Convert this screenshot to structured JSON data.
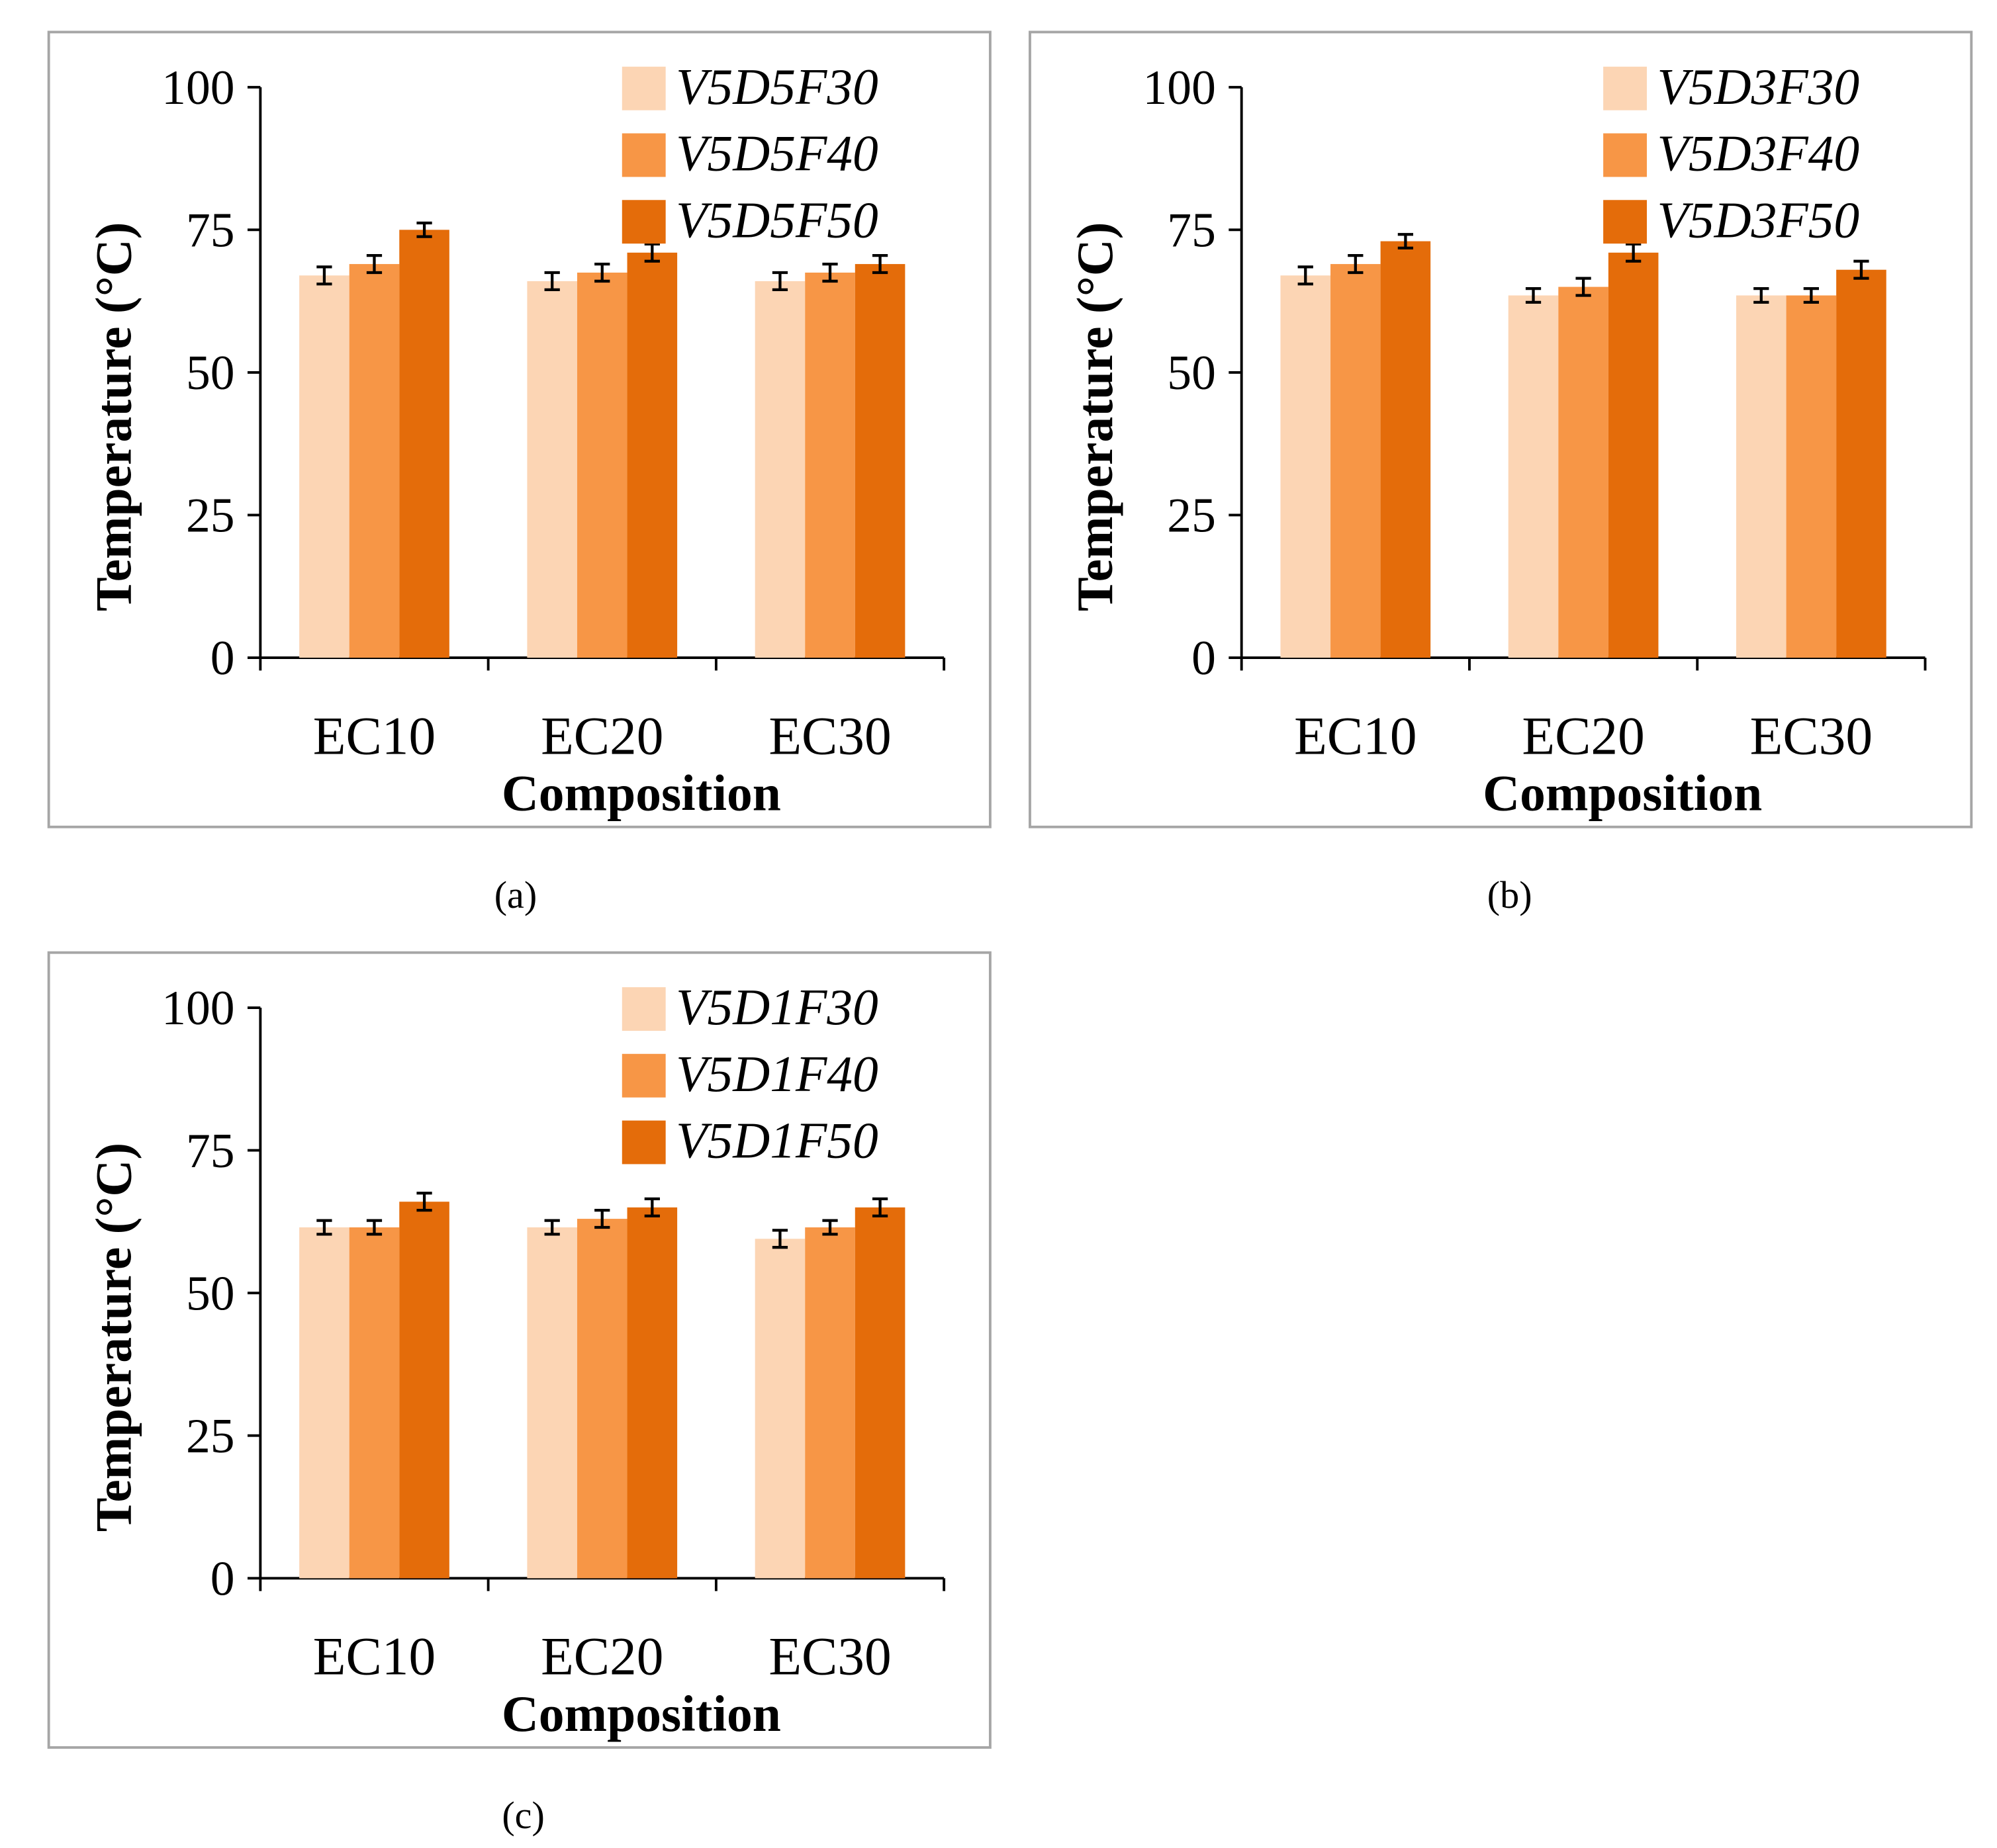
{
  "colors": {
    "series": [
      "#fcd5b4",
      "#f79646",
      "#e46c0a"
    ],
    "axis": "#000000",
    "frame": "#a6a6a6",
    "error_bar": "#000000"
  },
  "chart_data": [
    {
      "type": "bar",
      "panel": "a",
      "caption": "(a)",
      "title": "",
      "xlabel": "Composition",
      "ylabel": "Temperature (°C)",
      "ylim": [
        0,
        100
      ],
      "yticks": [
        "0",
        "25",
        "50",
        "75",
        "100"
      ],
      "categories": [
        "EC10",
        "EC20",
        "EC30"
      ],
      "legend_position": "top-right",
      "grid": false,
      "series": [
        {
          "name": "V5D5F30",
          "values": [
            67,
            66,
            66
          ],
          "errors": [
            1.5,
            1.5,
            1.5
          ]
        },
        {
          "name": "V5D5F40",
          "values": [
            69,
            67.5,
            67.5
          ],
          "errors": [
            1.5,
            1.5,
            1.5
          ]
        },
        {
          "name": "V5D5F50",
          "values": [
            75,
            71,
            69
          ],
          "errors": [
            1.2,
            1.5,
            1.5
          ]
        }
      ]
    },
    {
      "type": "bar",
      "panel": "b",
      "caption": "(b)",
      "title": "",
      "xlabel": "Composition",
      "ylabel": "Temperature (°C)",
      "ylim": [
        0,
        100
      ],
      "yticks": [
        "0",
        "25",
        "50",
        "75",
        "100"
      ],
      "categories": [
        "EC10",
        "EC20",
        "EC30"
      ],
      "legend_position": "top-right",
      "grid": false,
      "series": [
        {
          "name": "V5D3F30",
          "values": [
            67,
            63.5,
            63.5
          ],
          "errors": [
            1.5,
            1.2,
            1.2
          ]
        },
        {
          "name": "V5D3F40",
          "values": [
            69,
            65,
            63.5
          ],
          "errors": [
            1.5,
            1.5,
            1.2
          ]
        },
        {
          "name": "V5D3F50",
          "values": [
            73,
            71,
            68
          ],
          "errors": [
            1.2,
            1.5,
            1.5
          ]
        }
      ]
    },
    {
      "type": "bar",
      "panel": "c",
      "caption": "(c)",
      "title": "",
      "xlabel": "Composition",
      "ylabel": "Temperature (°C)",
      "ylim": [
        0,
        100
      ],
      "yticks": [
        "0",
        "25",
        "50",
        "75",
        "100"
      ],
      "categories": [
        "EC10",
        "EC20",
        "EC30"
      ],
      "legend_position": "top-right",
      "grid": false,
      "series": [
        {
          "name": "V5D1F30",
          "values": [
            61.5,
            61.5,
            59.5
          ],
          "errors": [
            1.2,
            1.2,
            1.5
          ]
        },
        {
          "name": "V5D1F40",
          "values": [
            61.5,
            63,
            61.5
          ],
          "errors": [
            1.2,
            1.5,
            1.2
          ]
        },
        {
          "name": "V5D1F50",
          "values": [
            66,
            65,
            65
          ],
          "errors": [
            1.5,
            1.5,
            1.5
          ]
        }
      ]
    }
  ]
}
